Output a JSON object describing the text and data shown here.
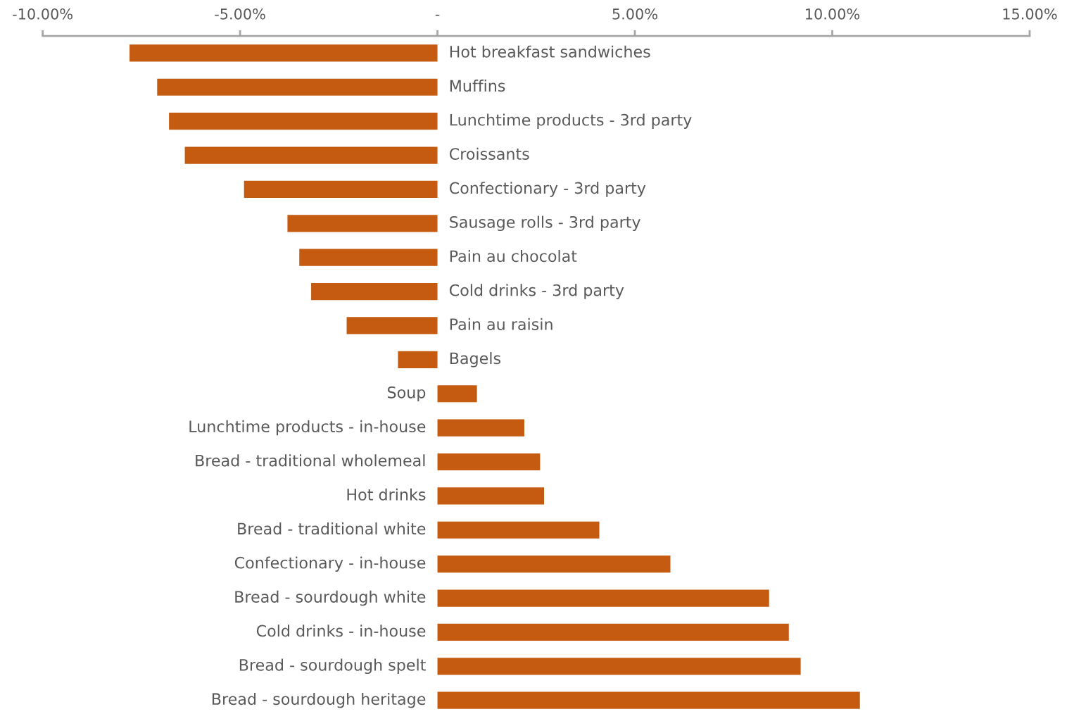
{
  "chart_data": {
    "type": "bar",
    "orientation": "horizontal",
    "categories": [
      "Hot breakfast sandwiches",
      "Muffins",
      "Lunchtime products - 3rd party",
      "Croissants",
      "Confectionary - 3rd party",
      "Sausage rolls - 3rd party",
      "Pain au chocolat",
      "Cold drinks - 3rd party",
      "Pain au raisin",
      "Bagels",
      "Soup",
      "Lunchtime products - in-house",
      "Bread - traditional wholemeal",
      "Hot drinks",
      "Bread - traditional white",
      "Confectionary - in-house",
      "Bread - sourdough white",
      "Cold drinks - in-house",
      "Bread - sourdough spelt",
      "Bread - sourdough heritage"
    ],
    "values": [
      -7.8,
      -7.1,
      -6.8,
      -6.4,
      -4.9,
      -3.8,
      -3.5,
      -3.2,
      -2.3,
      -1.0,
      1.0,
      2.2,
      2.6,
      2.7,
      4.1,
      5.9,
      8.4,
      8.9,
      9.2,
      10.7
    ],
    "color": "#c55a11",
    "xlim": [
      -10,
      15
    ],
    "xticks": [
      {
        "value": -10,
        "label": "-10.00%"
      },
      {
        "value": -5,
        "label": "-5.00%"
      },
      {
        "value": 0,
        "label": "-"
      },
      {
        "value": 5,
        "label": "5.00%"
      },
      {
        "value": 10,
        "label": "10.00%"
      },
      {
        "value": 15,
        "label": "15.00%"
      }
    ],
    "grid": false,
    "legend": false
  }
}
